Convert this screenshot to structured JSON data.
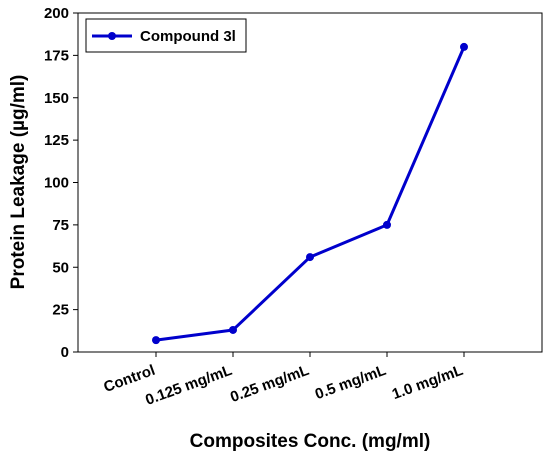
{
  "chart_data": {
    "type": "line",
    "categories": [
      "Control",
      "0.125 mg/mL",
      "0.25 mg/mL",
      "0.5 mg/mL",
      "1.0 mg/mL"
    ],
    "series": [
      {
        "name": "Compound 3l",
        "values": [
          7,
          13,
          56,
          75,
          180
        ],
        "color": "#0000CC"
      }
    ],
    "xlabel": "Composites Conc. (mg/ml)",
    "ylabel": "Protein Leakage (µg/ml)",
    "ylim": [
      0,
      200
    ],
    "yticks": [
      "0",
      "25",
      "50",
      "75",
      "100",
      "125",
      "150",
      "175",
      "200"
    ],
    "grid": false,
    "legend_position": "top-left",
    "line_color": "#0000CC"
  }
}
